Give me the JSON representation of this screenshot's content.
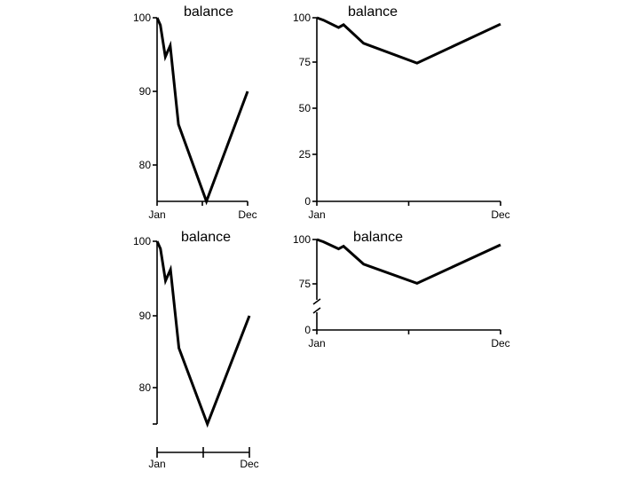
{
  "chart_data": [
    {
      "type": "line",
      "title": "balance",
      "x_ticks": [
        "Jan",
        "Dec"
      ],
      "y_ticks": [
        "100",
        "90",
        "80"
      ],
      "ylim": [
        75,
        100
      ],
      "series": [
        {
          "x": [
            0,
            0.4,
            1.0,
            1.6,
            2.6,
            6.0,
            11.0
          ],
          "values": [
            100,
            99,
            94.7,
            96.2,
            85.5,
            75,
            90
          ]
        }
      ]
    },
    {
      "type": "line",
      "title": "balance",
      "x_ticks": [
        "Jan",
        "Dec"
      ],
      "y_ticks": [
        "100",
        "75",
        "50",
        "25",
        "0"
      ],
      "ylim": [
        0,
        100
      ],
      "series": [
        {
          "x": [
            0,
            0.4,
            1.3,
            1.6,
            2.8,
            6.0,
            11.0
          ],
          "values": [
            100,
            98.7,
            94.7,
            96.2,
            86.1,
            75.3,
            96.5
          ]
        }
      ]
    },
    {
      "type": "line",
      "title": "balance",
      "x_ticks": [
        "Jan",
        "Dec"
      ],
      "y_ticks": [
        "100",
        "90",
        "80"
      ],
      "ylim": [
        75,
        100
      ],
      "series": [
        {
          "x": [
            0,
            0.4,
            1.0,
            1.6,
            2.6,
            6.0,
            11.0
          ],
          "values": [
            100,
            99,
            94.7,
            96.2,
            85.5,
            75,
            90
          ]
        }
      ]
    },
    {
      "type": "line",
      "title": "balance",
      "x_ticks": [
        "Jan",
        "Dec"
      ],
      "y_ticks": [
        "100",
        "75",
        "0"
      ],
      "ylim": [
        0,
        100
      ],
      "axis_break": true,
      "series": [
        {
          "x": [
            0,
            0.4,
            1.3,
            1.6,
            2.8,
            6.0,
            11.0
          ],
          "values": [
            100,
            98.7,
            94.7,
            96.2,
            86.1,
            75.3,
            97.0
          ]
        }
      ]
    }
  ]
}
